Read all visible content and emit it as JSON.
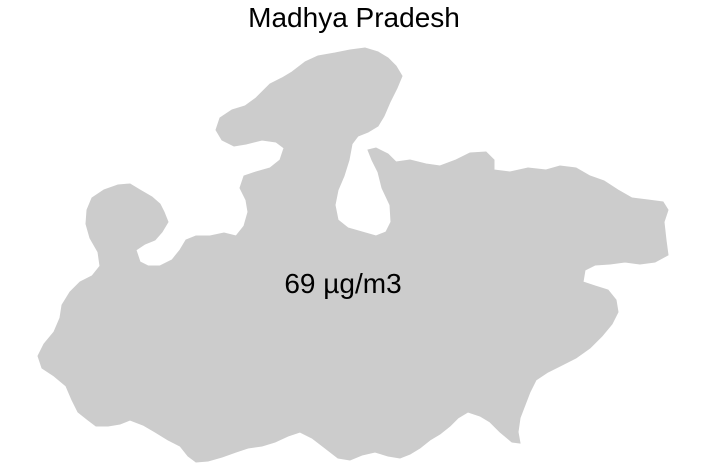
{
  "map": {
    "title": "Madhya Pradesh",
    "region": {
      "name": "Madhya Pradesh",
      "value_label": "69 µg/m3",
      "fill_color": "#cccccc"
    },
    "background_color": "#ffffff",
    "text_color": "#000000"
  }
}
